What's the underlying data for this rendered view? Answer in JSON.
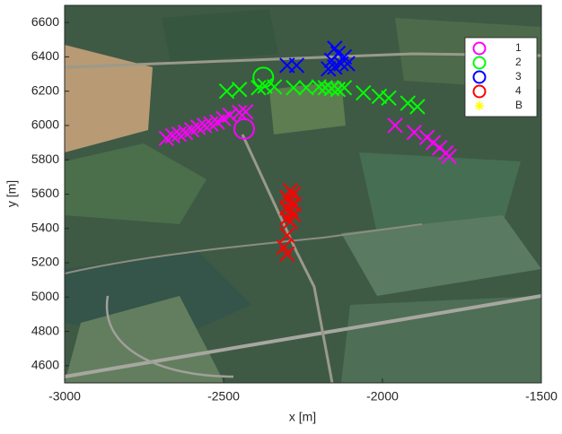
{
  "chart_data": {
    "type": "scatter",
    "xlabel": "x [m]",
    "ylabel": "y [m]",
    "xlim": [
      -3000,
      -1500
    ],
    "ylim": [
      4500,
      6700
    ],
    "xticks": [
      -3000,
      -2500,
      -2000,
      -1500
    ],
    "yticks": [
      4600,
      4800,
      5000,
      5200,
      5400,
      5600,
      5800,
      6000,
      6200,
      6400,
      6600
    ],
    "legend": "top-right",
    "series": [
      {
        "name": "1",
        "color": "#ff00ff",
        "x": [
          -2680,
          -2660,
          -2640,
          -2620,
          -2600,
          -2580,
          -2560,
          -2540,
          -2520,
          -2500,
          -2480,
          -2450,
          -2430,
          -1960,
          -1900,
          -1860,
          -1840,
          -1820,
          -1800,
          -1790
        ],
        "y": [
          5925,
          5940,
          5950,
          5960,
          5975,
          5990,
          6000,
          6010,
          6020,
          6040,
          6060,
          6075,
          6080,
          6000,
          5960,
          5930,
          5900,
          5870,
          5840,
          5820
        ],
        "circle_x": [
          -2435
        ],
        "circle_y": [
          5980
        ]
      },
      {
        "name": "2",
        "color": "#00ff00",
        "x": [
          -2490,
          -2450,
          -2390,
          -2370,
          -2340,
          -2280,
          -2240,
          -2200,
          -2180,
          -2160,
          -2140,
          -2120,
          -2060,
          -2010,
          -1980,
          -1920,
          -1890
        ],
        "y": [
          6200,
          6210,
          6220,
          6230,
          6225,
          6220,
          6220,
          6225,
          6220,
          6215,
          6210,
          6220,
          6190,
          6170,
          6160,
          6130,
          6110
        ],
        "circle_x": [
          -2375
        ],
        "circle_y": [
          6280
        ]
      },
      {
        "name": "3",
        "color": "#0000ff",
        "x": [
          -2300,
          -2270,
          -2150,
          -2160,
          -2140,
          -2120,
          -2110,
          -2150,
          -2130,
          -2170
        ],
        "y": [
          6350,
          6350,
          6340,
          6380,
          6420,
          6400,
          6360,
          6450,
          6360,
          6330
        ],
        "circle_x": [],
        "circle_y": []
      },
      {
        "name": "4",
        "color": "#ff0000",
        "x": [
          -2290,
          -2280,
          -2300,
          -2290,
          -2280,
          -2300,
          -2290,
          -2280,
          -2300,
          -2290,
          -2300,
          -2310,
          -2300
        ],
        "y": [
          5620,
          5600,
          5580,
          5560,
          5540,
          5520,
          5500,
          5480,
          5460,
          5440,
          5360,
          5290,
          5250
        ],
        "circle_x": [],
        "circle_y": []
      },
      {
        "name": "B",
        "color": "#ffff00",
        "marker": "star",
        "x": [],
        "y": [],
        "circle_x": [],
        "circle_y": []
      }
    ]
  }
}
